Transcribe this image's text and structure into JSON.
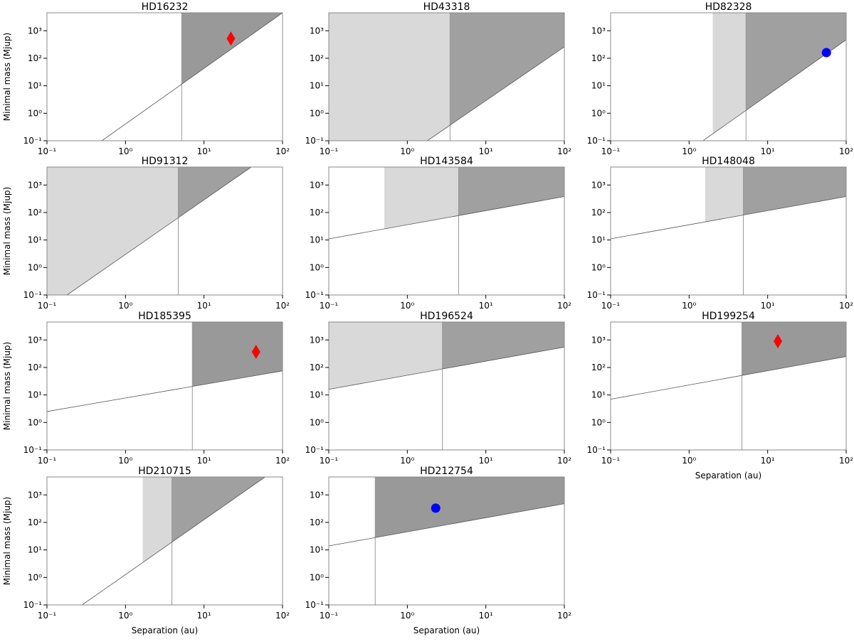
{
  "chart_data": [
    {
      "type": "area",
      "title": "HD16232",
      "ylabel": "Minimal mass (Mjup)",
      "xscale": "log",
      "yscale": "log",
      "xlim": [
        0.1,
        100
      ],
      "ylim": [
        0.1,
        4500
      ],
      "xticks": [
        {
          "value": 0.1,
          "label": "10⁻¹"
        },
        {
          "value": 1,
          "label": "10⁰"
        },
        {
          "value": 10,
          "label": "10¹"
        },
        {
          "value": 100,
          "label": "10²"
        }
      ],
      "yticks": [
        {
          "value": 0.1,
          "label": "10⁻¹"
        },
        {
          "value": 1,
          "label": "10⁰"
        },
        {
          "value": 10,
          "label": "10¹"
        },
        {
          "value": 100,
          "label": "10²"
        },
        {
          "value": 1000,
          "label": "10³"
        }
      ],
      "limit_line": {
        "x": [
          0.5,
          100
        ],
        "y": [
          0.1,
          4500
        ]
      },
      "vertical": 5.2,
      "dark_color": "#999999",
      "light_color": "#d9d9d9",
      "marker": {
        "x": 22,
        "y": 520,
        "shape": "diamond",
        "color": "#ff0000"
      }
    },
    {
      "type": "area",
      "title": "HD43318",
      "xscale": "log",
      "yscale": "log",
      "xlim": [
        0.1,
        100
      ],
      "ylim": [
        0.1,
        4500
      ],
      "xticks": [
        {
          "value": 0.1,
          "label": "10⁻¹"
        },
        {
          "value": 1,
          "label": "10⁰"
        },
        {
          "value": 10,
          "label": "10¹"
        },
        {
          "value": 100,
          "label": "10²"
        }
      ],
      "yticks": [
        {
          "value": 0.1,
          "label": "10⁻¹"
        },
        {
          "value": 1,
          "label": "10⁰"
        },
        {
          "value": 10,
          "label": "10¹"
        },
        {
          "value": 100,
          "label": "10²"
        },
        {
          "value": 1000,
          "label": "10³"
        }
      ],
      "limit_line": {
        "x": [
          1.8,
          100
        ],
        "y": [
          0.1,
          260
        ]
      },
      "light_from": 0.1,
      "vertical": 3.5,
      "dark_color": "#a0a0a0",
      "light_color": "#d9d9d9"
    },
    {
      "type": "area",
      "title": "HD82328",
      "xscale": "log",
      "yscale": "log",
      "xlim": [
        0.1,
        100
      ],
      "ylim": [
        0.1,
        4500
      ],
      "xticks": [
        {
          "value": 0.1,
          "label": "10⁻¹"
        },
        {
          "value": 1,
          "label": "10⁰"
        },
        {
          "value": 10,
          "label": "10¹"
        },
        {
          "value": 100,
          "label": "10²"
        }
      ],
      "yticks": [
        {
          "value": 0.1,
          "label": "10⁻¹"
        },
        {
          "value": 1,
          "label": "10⁰"
        },
        {
          "value": 10,
          "label": "10¹"
        },
        {
          "value": 100,
          "label": "10²"
        },
        {
          "value": 1000,
          "label": "10³"
        }
      ],
      "limit_line": {
        "x": [
          1.5,
          100
        ],
        "y": [
          0.1,
          470
        ]
      },
      "light_from": 2.0,
      "vertical": 5.3,
      "dark_color": "#a0a0a0",
      "light_color": "#d9d9d9",
      "marker": {
        "x": 56,
        "y": 160,
        "shape": "circle",
        "color": "#0000ff"
      }
    },
    {
      "type": "area",
      "title": "HD91312",
      "ylabel": "Minimal mass (Mjup)",
      "xscale": "log",
      "yscale": "log",
      "xlim": [
        0.1,
        100
      ],
      "ylim": [
        0.1,
        4500
      ],
      "xticks": [
        {
          "value": 0.1,
          "label": "10⁻¹"
        },
        {
          "value": 1,
          "label": "10⁰"
        },
        {
          "value": 10,
          "label": "10¹"
        },
        {
          "value": 100,
          "label": "10²"
        }
      ],
      "yticks": [
        {
          "value": 0.1,
          "label": "10⁻¹"
        },
        {
          "value": 1,
          "label": "10⁰"
        },
        {
          "value": 10,
          "label": "10¹"
        },
        {
          "value": 100,
          "label": "10²"
        },
        {
          "value": 1000,
          "label": "10³"
        }
      ],
      "limit_line": {
        "x": [
          0.18,
          40
        ],
        "y": [
          0.1,
          4500
        ]
      },
      "light_from": 0.1,
      "vertical": 4.7,
      "dark_color": "#a0a0a0",
      "light_color": "#d9d9d9"
    },
    {
      "type": "area",
      "title": "HD143584",
      "xscale": "log",
      "yscale": "log",
      "xlim": [
        0.1,
        100
      ],
      "ylim": [
        0.1,
        4500
      ],
      "xticks": [
        {
          "value": 0.1,
          "label": "10⁻¹"
        },
        {
          "value": 1,
          "label": "10⁰"
        },
        {
          "value": 10,
          "label": "10¹"
        },
        {
          "value": 100,
          "label": "10²"
        }
      ],
      "yticks": [
        {
          "value": 0.1,
          "label": "10⁻¹"
        },
        {
          "value": 1,
          "label": "10⁰"
        },
        {
          "value": 10,
          "label": "10¹"
        },
        {
          "value": 100,
          "label": "10²"
        },
        {
          "value": 1000,
          "label": "10³"
        }
      ],
      "limit_line": {
        "x": [
          0.1,
          100
        ],
        "y": [
          11,
          380
        ]
      },
      "light_from": 0.51,
      "vertical": 4.5,
      "dark_color": "#a0a0a0",
      "light_color": "#d9d9d9"
    },
    {
      "type": "area",
      "title": "HD148048",
      "xscale": "log",
      "yscale": "log",
      "xlim": [
        0.1,
        100
      ],
      "ylim": [
        0.1,
        4500
      ],
      "xticks": [
        {
          "value": 0.1,
          "label": "10⁻¹"
        },
        {
          "value": 1,
          "label": "10⁰"
        },
        {
          "value": 10,
          "label": "10¹"
        },
        {
          "value": 100,
          "label": "10²"
        }
      ],
      "yticks": [
        {
          "value": 0.1,
          "label": "10⁻¹"
        },
        {
          "value": 1,
          "label": "10⁰"
        },
        {
          "value": 10,
          "label": "10¹"
        },
        {
          "value": 100,
          "label": "10²"
        },
        {
          "value": 1000,
          "label": "10³"
        }
      ],
      "limit_line": {
        "x": [
          0.1,
          100
        ],
        "y": [
          11,
          380
        ]
      },
      "light_from": 1.6,
      "vertical": 4.9,
      "dark_color": "#a0a0a0",
      "light_color": "#d9d9d9"
    },
    {
      "type": "area",
      "title": "HD185395",
      "ylabel": "Minimal mass (Mjup)",
      "xscale": "log",
      "yscale": "log",
      "xlim": [
        0.1,
        100
      ],
      "ylim": [
        0.1,
        4500
      ],
      "xticks": [
        {
          "value": 0.1,
          "label": "10⁻¹"
        },
        {
          "value": 1,
          "label": "10⁰"
        },
        {
          "value": 10,
          "label": "10¹"
        },
        {
          "value": 100,
          "label": "10²"
        }
      ],
      "yticks": [
        {
          "value": 0.1,
          "label": "10⁻¹"
        },
        {
          "value": 1,
          "label": "10⁰"
        },
        {
          "value": 10,
          "label": "10¹"
        },
        {
          "value": 100,
          "label": "10²"
        },
        {
          "value": 1000,
          "label": "10³"
        }
      ],
      "limit_line": {
        "x": [
          0.1,
          100
        ],
        "y": [
          2.5,
          75
        ]
      },
      "vertical": 7.1,
      "dark_color": "#999999",
      "light_color": "#d9d9d9",
      "marker": {
        "x": 46,
        "y": 370,
        "shape": "diamond",
        "color": "#ff0000"
      }
    },
    {
      "type": "area",
      "title": "HD196524",
      "xscale": "log",
      "yscale": "log",
      "xlim": [
        0.1,
        100
      ],
      "ylim": [
        0.1,
        4500
      ],
      "xticks": [
        {
          "value": 0.1,
          "label": "10⁻¹"
        },
        {
          "value": 1,
          "label": "10⁰"
        },
        {
          "value": 10,
          "label": "10¹"
        },
        {
          "value": 100,
          "label": "10²"
        }
      ],
      "yticks": [
        {
          "value": 0.1,
          "label": "10⁻¹"
        },
        {
          "value": 1,
          "label": "10⁰"
        },
        {
          "value": 10,
          "label": "10¹"
        },
        {
          "value": 100,
          "label": "10²"
        },
        {
          "value": 1000,
          "label": "10³"
        }
      ],
      "limit_line": {
        "x": [
          0.1,
          100
        ],
        "y": [
          16,
          550
        ]
      },
      "light_from": 0.1,
      "vertical": 2.8,
      "dark_color": "#a0a0a0",
      "light_color": "#d9d9d9"
    },
    {
      "type": "area",
      "title": "HD199254",
      "xlabel": "Separation (au)",
      "xscale": "log",
      "yscale": "log",
      "xlim": [
        0.1,
        100
      ],
      "ylim": [
        0.1,
        4500
      ],
      "xticks": [
        {
          "value": 0.1,
          "label": "10⁻¹"
        },
        {
          "value": 1,
          "label": "10⁰"
        },
        {
          "value": 10,
          "label": "10¹"
        },
        {
          "value": 100,
          "label": "10²"
        }
      ],
      "yticks": [
        {
          "value": 0.1,
          "label": "10⁻¹"
        },
        {
          "value": 1,
          "label": "10⁰"
        },
        {
          "value": 10,
          "label": "10¹"
        },
        {
          "value": 100,
          "label": "10²"
        },
        {
          "value": 1000,
          "label": "10³"
        }
      ],
      "limit_line": {
        "x": [
          0.1,
          100
        ],
        "y": [
          7,
          250
        ]
      },
      "vertical": 4.7,
      "dark_color": "#999999",
      "light_color": "#d9d9d9",
      "marker": {
        "x": 13.5,
        "y": 900,
        "shape": "diamond",
        "color": "#ff0000"
      }
    },
    {
      "type": "area",
      "title": "HD210715",
      "ylabel": "Minimal mass (Mjup)",
      "xlabel": "Separation (au)",
      "xscale": "log",
      "yscale": "log",
      "xlim": [
        0.1,
        100
      ],
      "ylim": [
        0.1,
        4500
      ],
      "xticks": [
        {
          "value": 0.1,
          "label": "10⁻¹"
        },
        {
          "value": 1,
          "label": "10⁰"
        },
        {
          "value": 10,
          "label": "10¹"
        },
        {
          "value": 100,
          "label": "10²"
        }
      ],
      "yticks": [
        {
          "value": 0.1,
          "label": "10⁻¹"
        },
        {
          "value": 1,
          "label": "10⁰"
        },
        {
          "value": 10,
          "label": "10¹"
        },
        {
          "value": 100,
          "label": "10²"
        },
        {
          "value": 1000,
          "label": "10³"
        }
      ],
      "limit_line": {
        "x": [
          0.28,
          60
        ],
        "y": [
          0.1,
          4500
        ]
      },
      "light_from": 1.66,
      "vertical": 3.9,
      "dark_color": "#a0a0a0",
      "light_color": "#d9d9d9"
    },
    {
      "type": "area",
      "title": "HD212754",
      "xlabel": "Separation (au)",
      "xscale": "log",
      "yscale": "log",
      "xlim": [
        0.1,
        100
      ],
      "ylim": [
        0.1,
        4500
      ],
      "xticks": [
        {
          "value": 0.1,
          "label": "10⁻¹"
        },
        {
          "value": 1,
          "label": "10⁰"
        },
        {
          "value": 10,
          "label": "10¹"
        },
        {
          "value": 100,
          "label": "10²"
        }
      ],
      "yticks": [
        {
          "value": 0.1,
          "label": "10⁻¹"
        },
        {
          "value": 1,
          "label": "10⁰"
        },
        {
          "value": 10,
          "label": "10¹"
        },
        {
          "value": 100,
          "label": "10²"
        },
        {
          "value": 1000,
          "label": "10³"
        }
      ],
      "limit_line": {
        "x": [
          0.1,
          100
        ],
        "y": [
          14,
          480
        ]
      },
      "vertical": 0.39,
      "dark_color": "#999999",
      "light_color": "#d9d9d9",
      "marker": {
        "x": 2.3,
        "y": 330,
        "shape": "circle",
        "color": "#0000ff"
      }
    }
  ]
}
